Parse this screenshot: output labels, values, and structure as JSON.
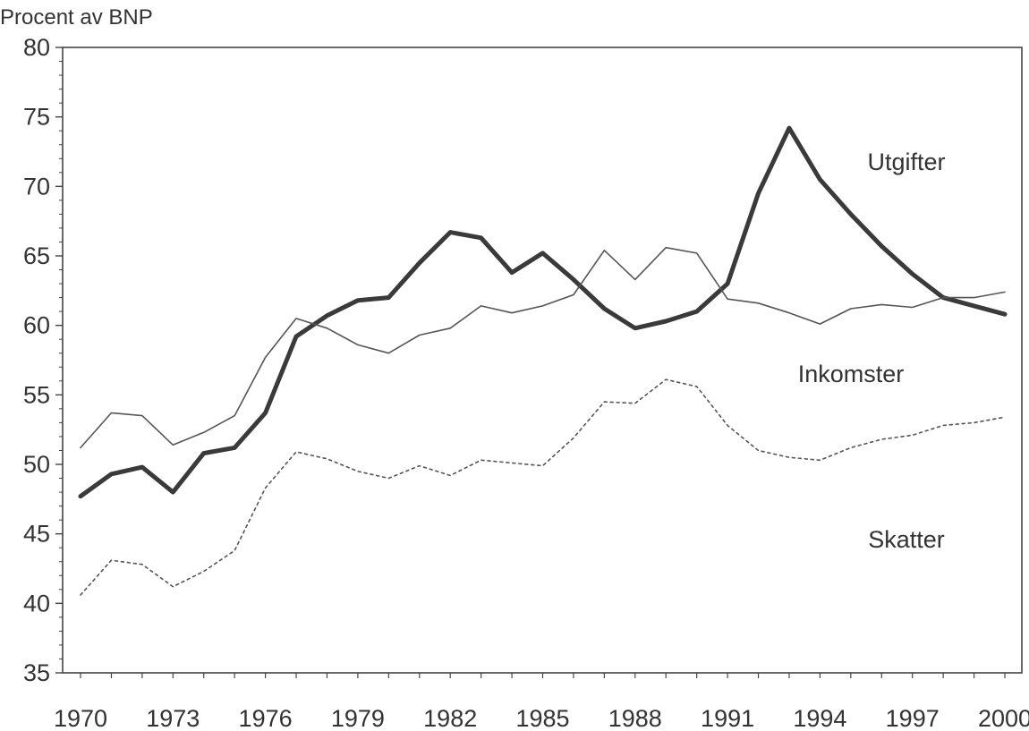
{
  "chart_data": {
    "type": "line",
    "title": "",
    "ylabel": "Procent av BNP",
    "xlabel": "",
    "xlim": [
      1970,
      2000
    ],
    "ylim": [
      35,
      80
    ],
    "x_ticks": [
      "1970",
      "1973",
      "1976",
      "1979",
      "1982",
      "1985",
      "1988",
      "1991",
      "1994",
      "1997",
      "2000"
    ],
    "y_ticks": [
      "35",
      "40",
      "45",
      "50",
      "55",
      "60",
      "65",
      "70",
      "75",
      "80"
    ],
    "grid": false,
    "x": [
      1970,
      1971,
      1972,
      1973,
      1974,
      1975,
      1976,
      1977,
      1978,
      1979,
      1980,
      1981,
      1982,
      1983,
      1984,
      1985,
      1986,
      1987,
      1988,
      1989,
      1990,
      1991,
      1992,
      1993,
      1994,
      1995,
      1996,
      1997,
      1998,
      1999,
      2000
    ],
    "series": [
      {
        "name": "Utgifter",
        "style": "thick",
        "values": [
          47.7,
          49.3,
          49.8,
          48.0,
          50.8,
          51.2,
          53.7,
          59.2,
          60.7,
          61.8,
          62.0,
          64.5,
          66.7,
          66.3,
          63.8,
          65.2,
          63.3,
          61.2,
          59.8,
          60.3,
          61.0,
          63.0,
          69.5,
          74.2,
          70.5,
          68.0,
          65.7,
          63.7,
          62.0,
          61.4,
          60.8
        ]
      },
      {
        "name": "Inkomster",
        "style": "thin",
        "values": [
          51.2,
          53.7,
          53.5,
          51.4,
          52.3,
          53.5,
          57.7,
          60.5,
          59.8,
          58.6,
          58.0,
          59.3,
          59.8,
          61.4,
          60.9,
          61.4,
          62.2,
          65.4,
          63.3,
          65.6,
          65.2,
          61.9,
          61.6,
          60.9,
          60.1,
          61.2,
          61.5,
          61.3,
          62.0,
          62.0,
          62.4
        ]
      },
      {
        "name": "Skatter",
        "style": "dotted",
        "values": [
          40.6,
          43.1,
          42.8,
          41.2,
          42.3,
          43.8,
          48.3,
          50.9,
          50.4,
          49.5,
          49.0,
          49.9,
          49.2,
          50.3,
          50.1,
          49.9,
          51.9,
          54.5,
          54.4,
          56.1,
          55.6,
          52.8,
          51.0,
          50.5,
          50.3,
          51.2,
          51.8,
          52.1,
          52.8,
          53.0,
          53.4
        ]
      }
    ]
  }
}
